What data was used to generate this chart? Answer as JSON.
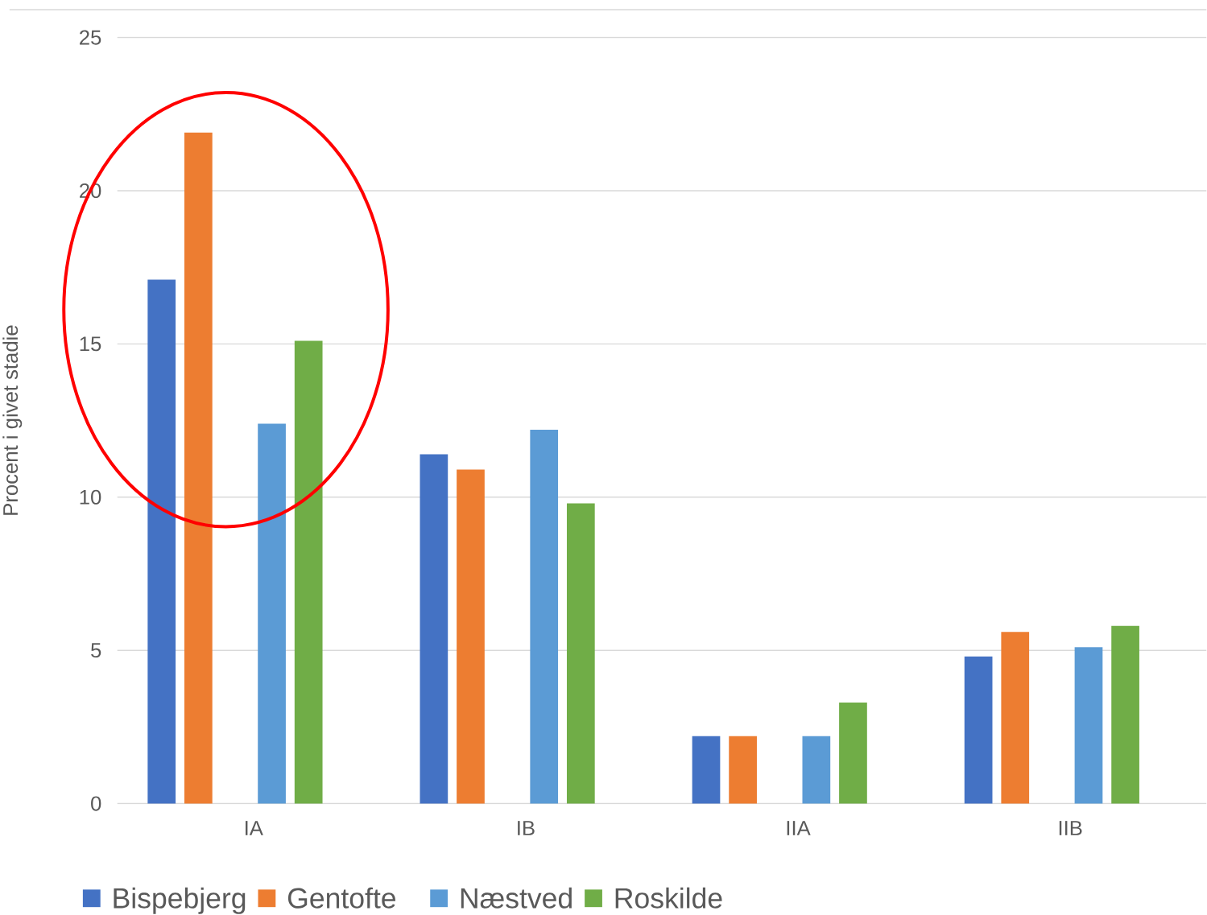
{
  "chart_data": {
    "type": "bar",
    "ylabel": "Procent i givet stadie",
    "categories": [
      "IA",
      "IB",
      "IIA",
      "IIB"
    ],
    "series": [
      {
        "name": "Bispebjerg",
        "color": "#4472c4",
        "values": [
          17.1,
          11.4,
          2.2,
          4.8
        ]
      },
      {
        "name": "Gentofte",
        "color": "#ed7d31",
        "values": [
          21.9,
          10.9,
          2.2,
          5.6
        ]
      },
      {
        "values": [
          null,
          null,
          null,
          null
        ]
      },
      {
        "name": "Næstved",
        "color": "#5b9bd5",
        "values": [
          12.4,
          12.2,
          2.2,
          5.1
        ]
      },
      {
        "name": "Roskilde",
        "color": "#70ad47",
        "values": [
          15.1,
          9.8,
          3.3,
          5.8
        ]
      },
      {
        "values": [
          null,
          null,
          null,
          null
        ]
      }
    ],
    "ylim": [
      0,
      25
    ],
    "yticks": [
      0,
      5,
      10,
      15,
      20,
      25
    ],
    "grid": "y",
    "legend": "bottom"
  }
}
